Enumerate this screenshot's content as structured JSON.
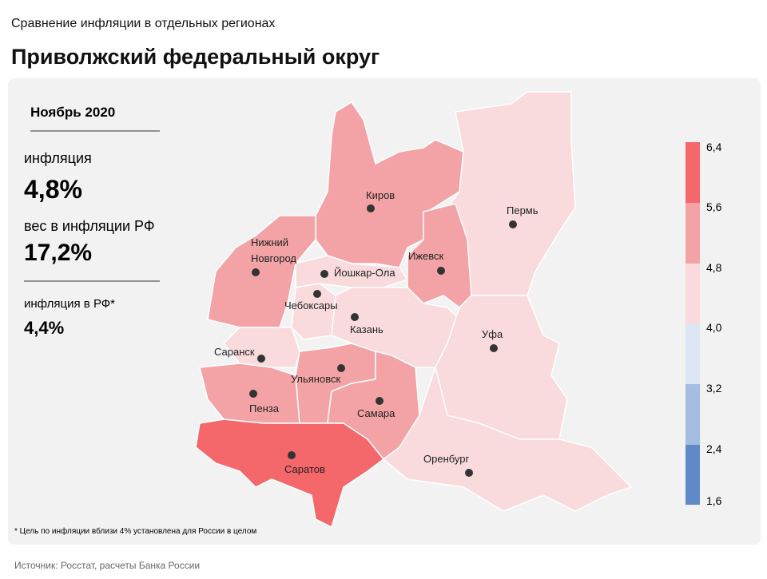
{
  "header": {
    "subtitle": "Сравнение инфляции в отдельных регионах",
    "title": "Приволжский федеральный округ"
  },
  "panel": {
    "period": "Ноябрь 2020",
    "inflation_label": "инфляция",
    "inflation_value": "4,8%",
    "weight_label": "вес в инфляции РФ",
    "weight_value": "17,2%",
    "rf_label": "инфляция в РФ*",
    "rf_value": "4,4%"
  },
  "legend": {
    "ticks": [
      "6,4",
      "5,6",
      "4,8",
      "4,0",
      "3,2",
      "2,4",
      "1,6"
    ]
  },
  "cities": [
    "Киров",
    "Пермь",
    "Нижний Новгород",
    "Ижевск",
    "Йошкар-Ола",
    "Чебоксары",
    "Казань",
    "Уфа",
    "Саранск",
    "Ульяновск",
    "Пенза",
    "Самара",
    "Саратов",
    "Оренбург"
  ],
  "footnote": "* Цель по инфляции вблизи 4% установлена для России в целом",
  "source": "Источник: Росстат, расчеты Банка России"
}
